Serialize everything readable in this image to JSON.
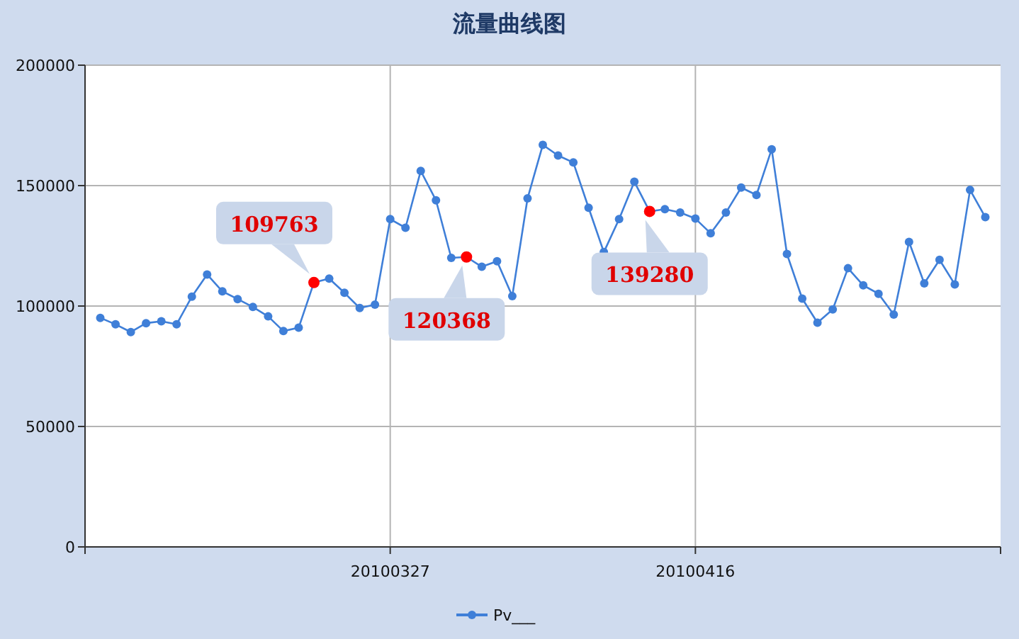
{
  "chart_data": {
    "type": "line",
    "title": "流量曲线图",
    "x": [
      "2010-03-08",
      "2010-03-09",
      "2010-03-10",
      "2010-03-11",
      "2010-03-12",
      "2010-03-13",
      "2010-03-14",
      "2010-03-15",
      "2010-03-16",
      "2010-03-17",
      "2010-03-18",
      "2010-03-19",
      "2010-03-20",
      "2010-03-21",
      "2010-03-22",
      "2010-03-23",
      "2010-03-24",
      "2010-03-25",
      "2010-03-26",
      "2010-03-27",
      "2010-03-28",
      "2010-03-29",
      "2010-03-30",
      "2010-03-31",
      "2010-04-01",
      "2010-04-02",
      "2010-04-03",
      "2010-04-04",
      "2010-04-05",
      "2010-04-06",
      "2010-04-07",
      "2010-04-08",
      "2010-04-09",
      "2010-04-10",
      "2010-04-11",
      "2010-04-12",
      "2010-04-13",
      "2010-04-14",
      "2010-04-15",
      "2010-04-16",
      "2010-04-17",
      "2010-04-18",
      "2010-04-19",
      "2010-04-20",
      "2010-04-21",
      "2010-04-22",
      "2010-04-23",
      "2010-04-24",
      "2010-04-25",
      "2010-04-26",
      "2010-04-27",
      "2010-04-28",
      "2010-04-29",
      "2010-04-30",
      "2010-05-01",
      "2010-05-02",
      "2010-05-03",
      "2010-05-04",
      "2010-05-05"
    ],
    "series": [
      {
        "name": "Pv___",
        "color": "#3f7fd8",
        "values": [
          95100,
          92400,
          89200,
          92900,
          93700,
          92400,
          103900,
          113100,
          106100,
          102900,
          99600,
          95700,
          89600,
          91000,
          109763,
          111400,
          105500,
          99200,
          100600,
          136100,
          132500,
          156100,
          143900,
          120000,
          120368,
          116300,
          118600,
          104100,
          144700,
          166900,
          162500,
          159600,
          140800,
          122400,
          136100,
          151600,
          139280,
          140200,
          138800,
          136300,
          130200,
          138800,
          149200,
          146100,
          165100,
          121600,
          103100,
          93100,
          98600,
          115700,
          108600,
          105100,
          96500,
          126600,
          109400,
          119200,
          109000,
          148200,
          136900
        ],
        "colors": [
          "#3f7fd8",
          "#3f7fd8",
          "#3f7fd8",
          "#3f7fd8",
          "#3f7fd8",
          "#3f7fd8",
          "#3f7fd8",
          "#3f7fd8",
          "#3f7fd8",
          "#3f7fd8",
          "#3f7fd8",
          "#3f7fd8",
          "#3f7fd8",
          "#3f7fd8",
          "#ff0000",
          "#3f7fd8",
          "#3f7fd8",
          "#3f7fd8",
          "#3f7fd8",
          "#3f7fd8",
          "#3f7fd8",
          "#3f7fd8",
          "#3f7fd8",
          "#3f7fd8",
          "#ff0000",
          "#3f7fd8",
          "#3f7fd8",
          "#3f7fd8",
          "#3f7fd8",
          "#3f7fd8",
          "#3f7fd8",
          "#3f7fd8",
          "#3f7fd8",
          "#3f7fd8",
          "#3f7fd8",
          "#3f7fd8",
          "#ff0000",
          "#3f7fd8",
          "#3f7fd8",
          "#3f7fd8",
          "#3f7fd8",
          "#3f7fd8",
          "#3f7fd8",
          "#3f7fd8",
          "#3f7fd8",
          "#3f7fd8",
          "#3f7fd8",
          "#3f7fd8",
          "#3f7fd8",
          "#3f7fd8",
          "#3f7fd8",
          "#3f7fd8",
          "#3f7fd8",
          "#3f7fd8",
          "#3f7fd8",
          "#3f7fd8",
          "#3f7fd8",
          "#3f7fd8",
          "#3f7fd8"
        ]
      }
    ],
    "annotations": [
      {
        "text": "109763",
        "x": "2010-03-22",
        "y": 109763
      },
      {
        "text": "120368",
        "x": "2010-04-01",
        "y": 120368
      },
      {
        "text": "139280",
        "x": "2010-04-13",
        "y": 139280
      }
    ],
    "xlim": [
      "2010-03-07",
      "2010-05-06"
    ],
    "xticks": [
      {
        "value": "2010-03-27",
        "label": "20100327"
      },
      {
        "value": "2010-04-16",
        "label": "20100416"
      }
    ],
    "ylim": [
      0,
      200000
    ],
    "yticks": [
      0,
      50000,
      100000,
      150000,
      200000
    ],
    "grid": true,
    "legend": "bottom",
    "marker": "circle",
    "line_style": "solid"
  }
}
